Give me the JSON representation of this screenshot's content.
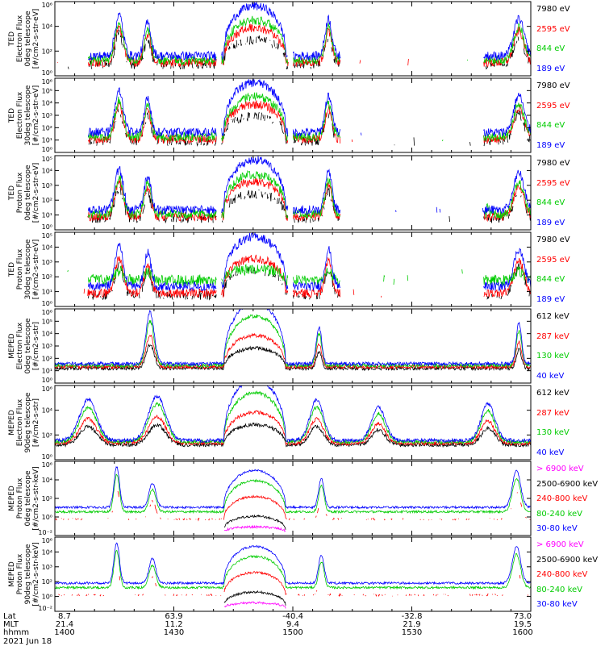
{
  "chart_data": [
    {
      "type": "line",
      "ylabel": [
        "TED",
        "Electron Flux",
        "0deg telescope",
        "[#/cm2-s-str-eV]"
      ],
      "yscale": "log",
      "ylim_exp": [
        0,
        6
      ],
      "yticks": [
        "10⁶",
        "10⁴",
        "10²",
        "10⁰"
      ],
      "series": [
        {
          "name": "7980 eV",
          "color": "#000000"
        },
        {
          "name": "2595 eV",
          "color": "#ff0000"
        },
        {
          "name": "844 eV",
          "color": "#00cc00"
        },
        {
          "name": "189 eV",
          "color": "#0000ff"
        }
      ],
      "profile": "ted_e"
    },
    {
      "type": "line",
      "ylabel": [
        "TED",
        "Electron Flux",
        "30deg telescope",
        "[#/cm2-s-str-eV]"
      ],
      "yscale": "log",
      "ylim_exp": [
        0,
        6
      ],
      "yticks": [
        "10⁶",
        "10⁵",
        "10⁴",
        "10³",
        "10²",
        "10¹",
        "10⁰"
      ],
      "series": [
        {
          "name": "7980 eV",
          "color": "#000000"
        },
        {
          "name": "2595 eV",
          "color": "#ff0000"
        },
        {
          "name": "844 eV",
          "color": "#00cc00"
        },
        {
          "name": "189 eV",
          "color": "#0000ff"
        }
      ],
      "profile": "ted_e"
    },
    {
      "type": "line",
      "ylabel": [
        "TED",
        "Proton Flux",
        "0deg telescope",
        "[#/cm2-s-str-eV]"
      ],
      "yscale": "log",
      "ylim_exp": [
        0,
        5
      ],
      "yticks": [
        "10⁵",
        "10⁴",
        "10³",
        "10²",
        "10¹",
        "10⁰"
      ],
      "series": [
        {
          "name": "7980 eV",
          "color": "#000000"
        },
        {
          "name": "2595 eV",
          "color": "#ff0000"
        },
        {
          "name": "844 eV",
          "color": "#00cc00"
        },
        {
          "name": "189 eV",
          "color": "#0000ff"
        }
      ],
      "profile": "ted_p"
    },
    {
      "type": "line",
      "ylabel": [
        "TED",
        "Proton Flux",
        "30deg telescope",
        "[#/cm2-s-str-eV]"
      ],
      "yscale": "log",
      "ylim_exp": [
        0,
        5
      ],
      "yticks": [
        "10⁵",
        "10⁴",
        "10³",
        "10²",
        "10¹",
        "10⁰"
      ],
      "series": [
        {
          "name": "7980 eV",
          "color": "#000000"
        },
        {
          "name": "2595 eV",
          "color": "#ff0000"
        },
        {
          "name": "844 eV",
          "color": "#00cc00"
        },
        {
          "name": "189 eV",
          "color": "#0000ff"
        }
      ],
      "profile": "ted_p30"
    },
    {
      "type": "line",
      "ylabel": [
        "MEPED",
        "Electron Flux",
        "0deg telescope",
        "[#/cm2-s-str]"
      ],
      "yscale": "log",
      "ylim_exp": [
        0,
        6
      ],
      "yticks": [
        "10⁶",
        "10⁵",
        "10⁴",
        "10³",
        "10²",
        "10¹",
        "10⁰"
      ],
      "series": [
        {
          "name": "612 keV",
          "color": "#000000"
        },
        {
          "name": "287 keV",
          "color": "#ff0000"
        },
        {
          "name": "130 keV",
          "color": "#00cc00"
        },
        {
          "name": "40 keV",
          "color": "#0000ff"
        }
      ],
      "profile": "mep_e0"
    },
    {
      "type": "line",
      "ylabel": [
        "MEPED",
        "Electron Flux",
        "90deg telescope",
        "[#/cm2-s-str]"
      ],
      "yscale": "log",
      "ylim_exp": [
        0,
        6
      ],
      "yticks": [
        "10⁶",
        "10⁴",
        "10²",
        "10⁰"
      ],
      "series": [
        {
          "name": "612 keV",
          "color": "#000000"
        },
        {
          "name": "287 keV",
          "color": "#ff0000"
        },
        {
          "name": "130 keV",
          "color": "#00cc00"
        },
        {
          "name": "40 keV",
          "color": "#0000ff"
        }
      ],
      "profile": "mep_e90"
    },
    {
      "type": "line",
      "ylabel": [
        "MEPED",
        "Proton Flux",
        "0deg telescope",
        "[#/cm2-s-str-keV]"
      ],
      "yscale": "log",
      "ylim_exp": [
        -2,
        6
      ],
      "yticks": [
        "10⁶",
        "10⁴",
        "10²",
        "10⁰",
        "10⁻²"
      ],
      "series": [
        {
          "name": "> 6900 keV",
          "color": "#ff00ff"
        },
        {
          "name": "2500-6900 keV",
          "color": "#000000"
        },
        {
          "name": "240-800 keV",
          "color": "#ff0000"
        },
        {
          "name": "80-240 keV",
          "color": "#00cc00"
        },
        {
          "name": "30-80 keV",
          "color": "#0000ff"
        }
      ],
      "profile": "mep_p0"
    },
    {
      "type": "line",
      "ylabel": [
        "MEPED",
        "Proton Flux",
        "90deg telescope",
        "[#/cm2-s-str-keV]"
      ],
      "yscale": "log",
      "ylim_exp": [
        -2,
        6
      ],
      "yticks": [
        "10⁶",
        "10⁴",
        "10³",
        "10²",
        "10⁰",
        "10⁻²"
      ],
      "series": [
        {
          "name": "> 6900 keV",
          "color": "#ff00ff"
        },
        {
          "name": "2500-6900 keV",
          "color": "#000000"
        },
        {
          "name": "240-800 keV",
          "color": "#ff0000"
        },
        {
          "name": "80-240 keV",
          "color": "#00cc00"
        },
        {
          "name": "30-80 keV",
          "color": "#0000ff"
        }
      ],
      "profile": "mep_p90"
    }
  ],
  "x_axis": {
    "rows": [
      {
        "label": "Lat",
        "values": [
          "8.7",
          "63.9",
          "-40.4",
          "-32.8",
          "73.0"
        ]
      },
      {
        "label": "MLT",
        "values": [
          "21.4",
          "11.2",
          "9.4",
          "21.9",
          "19.5"
        ]
      },
      {
        "label": "hhmm",
        "values": [
          "1400",
          "1430",
          "1500",
          "1530",
          "1600"
        ]
      }
    ],
    "date": "2021 Jun 18",
    "time_range_hhmm": [
      "1400",
      "1600"
    ]
  }
}
